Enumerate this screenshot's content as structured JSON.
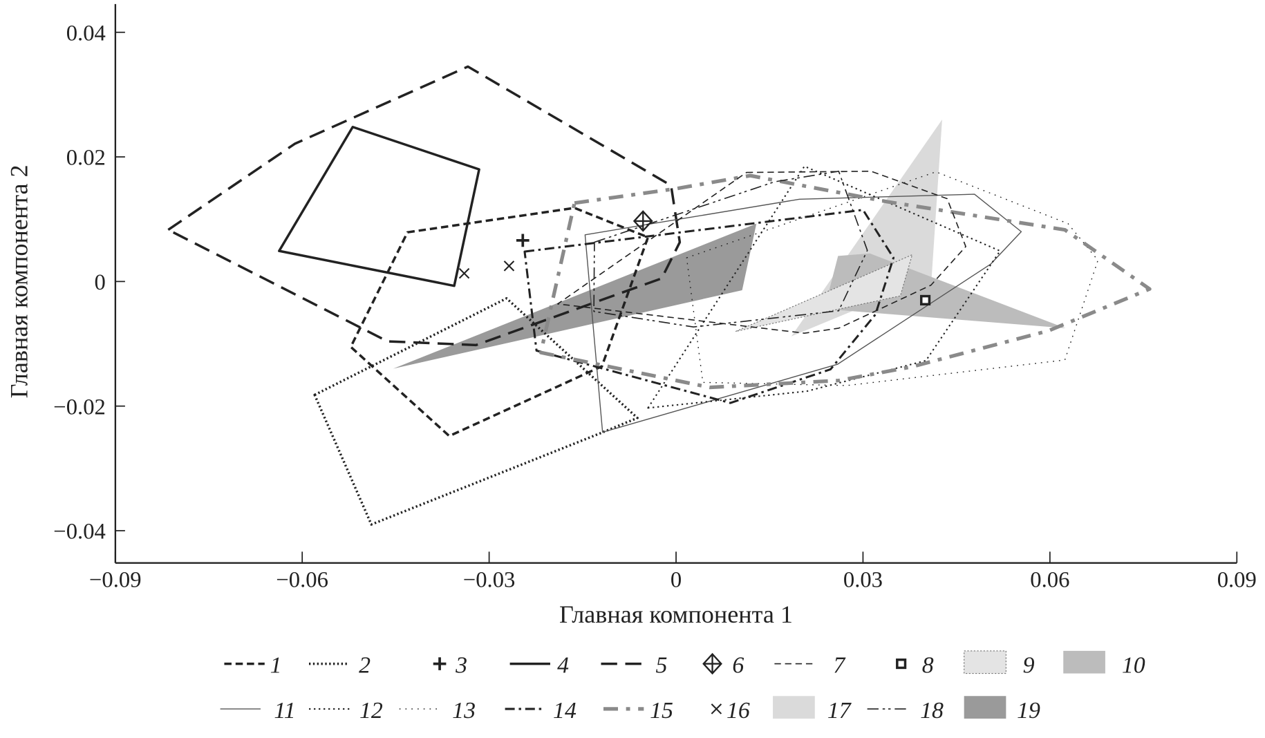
{
  "chart_data": {
    "type": "scatter",
    "subtype": "convex-hull polygons",
    "title": "",
    "xlabel": "Главная компонента 1",
    "ylabel": "Главная компонента 2",
    "xlim": [
      -0.09,
      0.09
    ],
    "ylim": [
      -0.045,
      0.045
    ],
    "xticks": [
      "−0.09",
      "−0.06",
      "−0.03",
      "0",
      "0.03",
      "0.06",
      "0.09"
    ],
    "xtick_values": [
      -0.09,
      -0.06,
      -0.03,
      0,
      0.03,
      0.06,
      0.09
    ],
    "yticks": [
      "0.04",
      "0.02",
      "0",
      "−0.02",
      "−0.04"
    ],
    "ytick_values": [
      0.04,
      0.02,
      0,
      -0.02,
      -0.04
    ],
    "grid": false,
    "legend_placement": "bottom",
    "colors": {
      "black": "#222222",
      "gray_line": "#8a8a8a",
      "fill_9": "#e4e4e4",
      "fill_10": "#bcbcbc",
      "fill_17": "#dadada",
      "fill_19": "#9a9a9a"
    },
    "series": [
      {
        "name": "1",
        "points": [
          [
            -0.0431,
            0.0079
          ],
          [
            -0.0163,
            0.0118
          ],
          [
            -0.0045,
            0.0071
          ],
          [
            -0.0119,
            -0.0136
          ],
          [
            -0.0364,
            -0.0248
          ],
          [
            -0.0522,
            -0.0105
          ]
        ]
      },
      {
        "name": "2",
        "points": [
          [
            -0.058,
            -0.0182
          ],
          [
            -0.0272,
            -0.0027
          ],
          [
            -0.0062,
            -0.0219
          ],
          [
            -0.012,
            -0.0243
          ],
          [
            -0.0489,
            -0.039
          ]
        ]
      },
      {
        "name": "3",
        "points": [
          [
            -0.0246,
            0.0066
          ]
        ]
      },
      {
        "name": "4",
        "points": [
          [
            -0.0519,
            0.0248
          ],
          [
            -0.0316,
            0.018
          ],
          [
            -0.0356,
            -0.0007
          ],
          [
            -0.0637,
            0.0049
          ]
        ]
      },
      {
        "name": "5",
        "points": [
          [
            -0.0815,
            0.0083
          ],
          [
            -0.0612,
            0.0221
          ],
          [
            -0.0334,
            0.0345
          ],
          [
            -0.0008,
            0.0154
          ],
          [
            0.0006,
            0.0063
          ],
          [
            -0.0023,
            0.0005
          ],
          [
            -0.0321,
            -0.0102
          ],
          [
            -0.0463,
            -0.0096
          ]
        ]
      },
      {
        "name": "6",
        "points": [
          [
            -0.0053,
            0.0097
          ]
        ]
      },
      {
        "name": "7",
        "points": [
          [
            0.0113,
            0.0175
          ],
          [
            0.0313,
            0.0177
          ],
          [
            0.0435,
            0.0133
          ],
          [
            0.0465,
            0.0056
          ],
          [
            0.0409,
            -0.0006
          ],
          [
            0.0261,
            -0.0075
          ],
          [
            0.0206,
            -0.0083
          ],
          [
            -0.019,
            -0.0036
          ]
        ]
      },
      {
        "name": "8",
        "points": [
          [
            0.04,
            -0.003
          ]
        ]
      },
      {
        "name": "9",
        "points": [
          [
            0.0096,
            -0.008
          ],
          [
            0.0379,
            0.0043
          ],
          [
            0.036,
            -0.0023
          ]
        ]
      },
      {
        "name": "10",
        "points": [
          [
            0.026,
            0.0041
          ],
          [
            0.0311,
            0.0045
          ],
          [
            0.0625,
            -0.0075
          ],
          [
            0.0238,
            -0.0044
          ]
        ]
      },
      {
        "name": "11",
        "points": [
          [
            -0.0146,
            0.0075
          ],
          [
            0.0198,
            0.0132
          ],
          [
            0.0479,
            0.014
          ],
          [
            0.0554,
            0.008
          ],
          [
            0.0505,
            0.0028
          ],
          [
            0.0259,
            -0.0133
          ],
          [
            -0.0118,
            -0.0242
          ]
        ]
      },
      {
        "name": "12",
        "points": [
          [
            -0.0045,
            -0.0203
          ],
          [
            0.0206,
            0.0185
          ],
          [
            0.052,
            0.0049
          ],
          [
            0.0401,
            -0.0127
          ],
          [
            0.021,
            -0.0176
          ]
        ]
      },
      {
        "name": "13",
        "points": [
          [
            0.0017,
            0.0038
          ],
          [
            0.0417,
            0.0176
          ],
          [
            0.0629,
            0.0093
          ],
          [
            0.0677,
            0.0034
          ],
          [
            0.0624,
            -0.0126
          ],
          [
            0.0274,
            -0.0167
          ],
          [
            0.0043,
            -0.0162
          ]
        ]
      },
      {
        "name": "14",
        "points": [
          [
            -0.0243,
            0.0048
          ],
          [
            0.03,
            0.0115
          ],
          [
            0.0349,
            0.0038
          ],
          [
            0.032,
            -0.0053
          ],
          [
            0.0248,
            -0.0141
          ],
          [
            0.0087,
            -0.0195
          ],
          [
            -0.0224,
            -0.0111
          ]
        ]
      },
      {
        "name": "15",
        "points": [
          [
            -0.0163,
            0.0126
          ],
          [
            0.0,
            0.0149
          ],
          [
            0.0119,
            0.017
          ],
          [
            0.0339,
            0.0128
          ],
          [
            0.0624,
            0.0083
          ],
          [
            0.076,
            -0.0012
          ],
          [
            0.0598,
            -0.0079
          ],
          [
            0.0378,
            -0.0137
          ],
          [
            0.0261,
            -0.0159
          ],
          [
            0.0054,
            -0.017
          ],
          [
            -0.0217,
            -0.0114
          ]
        ]
      },
      {
        "name": "16",
        "points": [
          [
            -0.034,
            0.0013
          ],
          [
            -0.0268,
            0.0025
          ]
        ]
      },
      {
        "name": "17",
        "points": [
          [
            0.0427,
            0.026
          ],
          [
            0.041,
            0.0005
          ],
          [
            0.0185,
            -0.0088
          ]
        ]
      },
      {
        "name": "18",
        "points": [
          [
            -0.0131,
            0.0063
          ],
          [
            0.0158,
            0.016
          ],
          [
            0.0261,
            0.0177
          ],
          [
            0.0307,
            0.005
          ],
          [
            0.0261,
            -0.0047
          ],
          [
            0.0028,
            -0.0073
          ],
          [
            -0.0132,
            -0.0048
          ]
        ]
      },
      {
        "name": "19",
        "points": [
          [
            -0.0454,
            -0.014
          ],
          [
            0.0129,
            0.0093
          ],
          [
            0.0106,
            -0.0014
          ]
        ]
      }
    ]
  }
}
